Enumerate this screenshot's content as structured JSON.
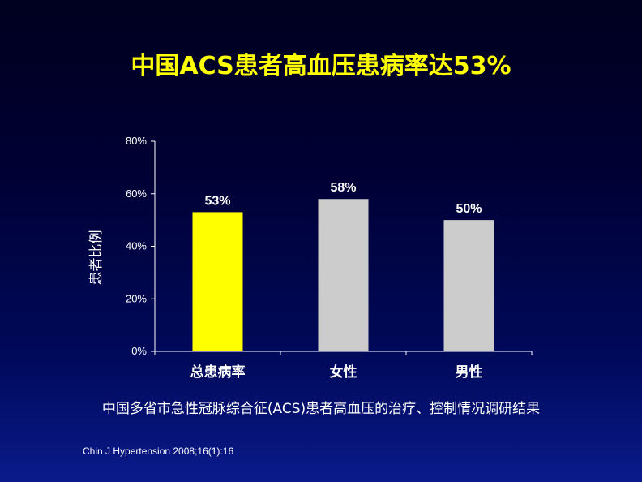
{
  "slide": {
    "title": "中国ACS患者高血压患病率达53%",
    "subtitle": "中国多省市急性冠脉综合征(ACS)患者高血压的治疗、控制情况调研结果",
    "citation": "Chin J Hypertension 2008;16(1):16"
  },
  "chart_data": {
    "type": "bar",
    "categories": [
      "总患病率",
      "女性",
      "男性"
    ],
    "values": [
      53,
      58,
      50
    ],
    "data_labels": [
      "53%",
      "58%",
      "50%"
    ],
    "ylabel": "患者比例",
    "xlabel": "",
    "ylim": [
      0,
      80
    ],
    "yticks": [
      {
        "value": 0,
        "label": "0%"
      },
      {
        "value": 20,
        "label": "20%"
      },
      {
        "value": 40,
        "label": "40%"
      },
      {
        "value": 60,
        "label": "60%"
      },
      {
        "value": 80,
        "label": "80%"
      }
    ],
    "bar_colors": [
      "#ffff00",
      "#cccccc",
      "#cccccc"
    ],
    "grid": false,
    "legend": "none"
  },
  "colors": {
    "title": "#ffff00",
    "text": "#ffffff",
    "axis": "#ffffff",
    "highlight_bar": "#ffff00",
    "bar": "#cccccc"
  }
}
